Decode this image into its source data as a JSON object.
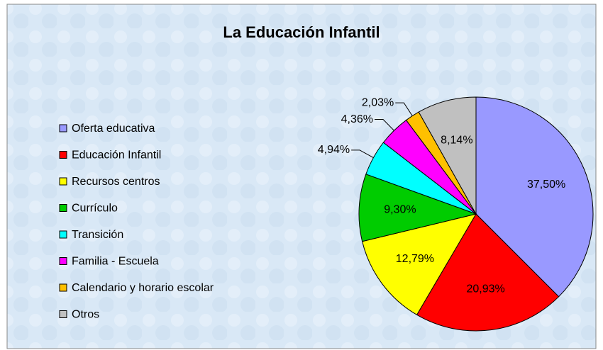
{
  "chart_data": {
    "type": "pie",
    "title": "La Educación Infantil",
    "categories": [
      "Oferta educativa",
      "Educación Infantil",
      "Recursos centros",
      "Currículo",
      "Transición",
      "Familia - Escuela",
      "Calendario y horario escolar",
      "Otros"
    ],
    "values": [
      37.5,
      20.93,
      12.79,
      9.3,
      4.94,
      4.36,
      2.03,
      8.14
    ],
    "value_labels": [
      "37,50%",
      "20,93%",
      "12,79%",
      "9,30%",
      "4,94%",
      "4,36%",
      "2,03%",
      "8,14%"
    ],
    "colors": [
      "#9999ff",
      "#ff0000",
      "#ffff00",
      "#00cc00",
      "#00ffff",
      "#ff00ff",
      "#ffc000",
      "#c0c0c0"
    ],
    "legend": "left"
  }
}
